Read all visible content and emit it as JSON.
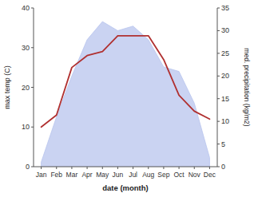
{
  "chart_data": {
    "type": "line",
    "categories": [
      "Jan",
      "Feb",
      "Mar",
      "Apr",
      "May",
      "Jun",
      "Jul",
      "Aug",
      "Sep",
      "Oct",
      "Nov",
      "Dec"
    ],
    "series": [
      {
        "color": "#b03030",
        "values": [
          10,
          13,
          25,
          28,
          29,
          33,
          33,
          33,
          27,
          18,
          14,
          12
        ]
      },
      {
        "type": "area",
        "axis": "y2",
        "color": "#b8c4ee",
        "values": [
          1,
          11,
          20,
          28,
          32,
          30,
          31,
          28,
          22,
          21,
          14,
          2
        ]
      }
    ],
    "xlabel": "date (month)",
    "ylabel": "max temp (C)",
    "y2label": "med. precipitation (kg/m2)",
    "ylim": [
      0,
      40
    ],
    "yticks": [
      0,
      10,
      20,
      30,
      40
    ],
    "y2lim": [
      0,
      35
    ],
    "y2ticks": [
      0,
      5,
      10,
      15,
      20,
      25,
      30,
      35
    ],
    "grid": false
  }
}
